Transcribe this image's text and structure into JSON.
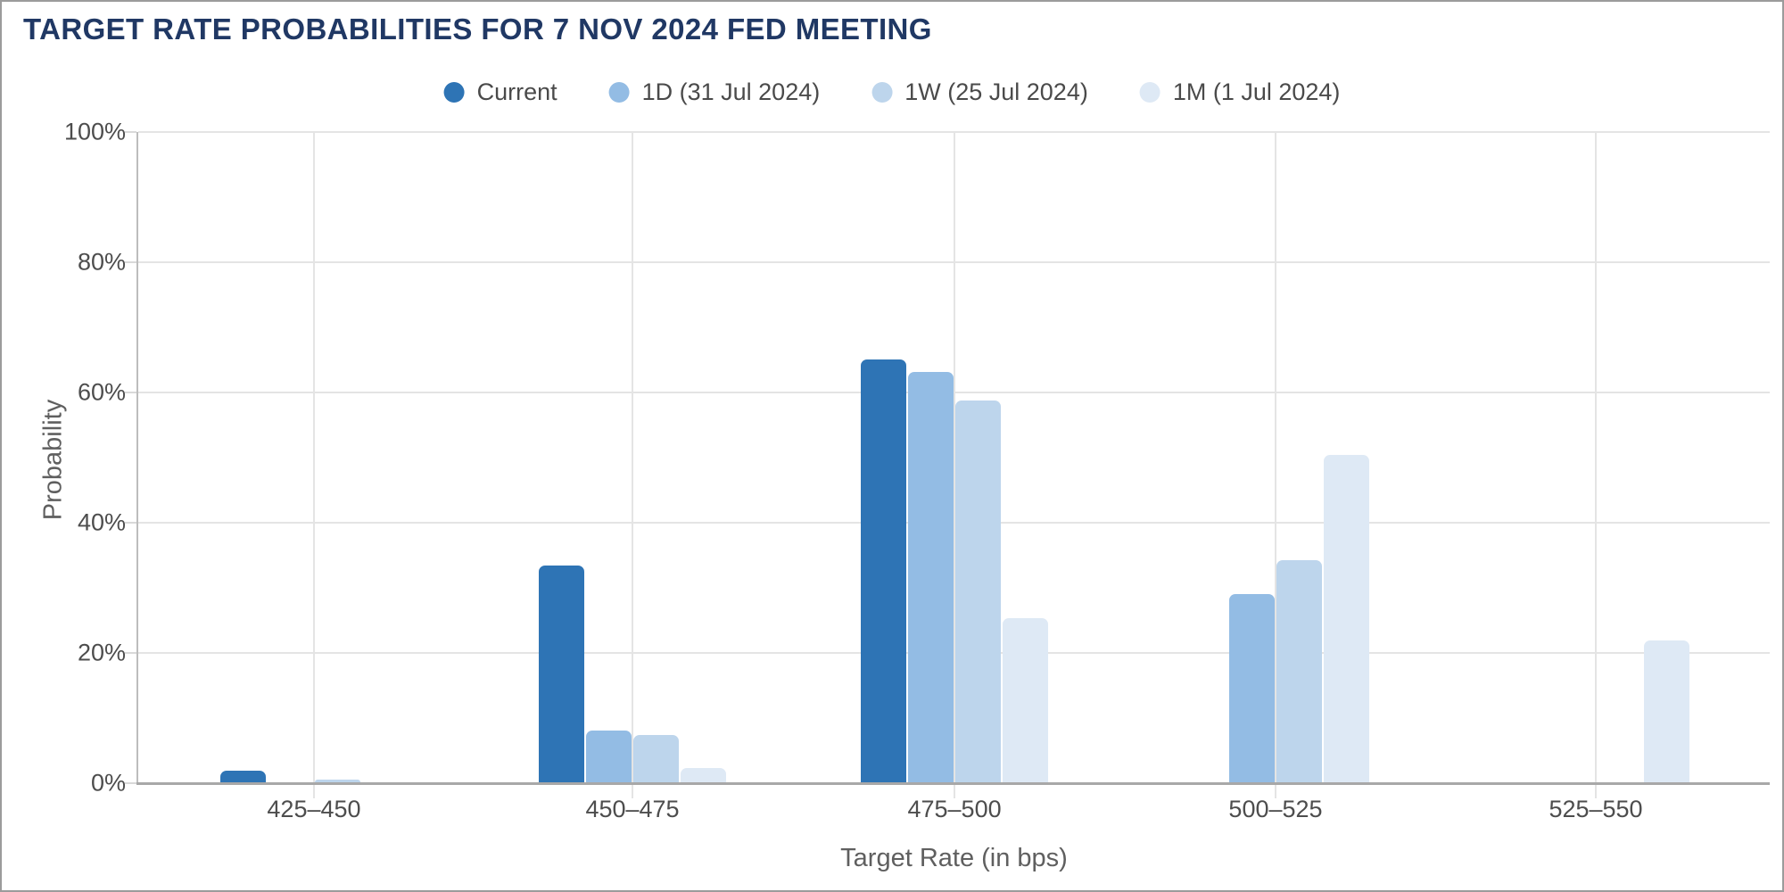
{
  "page": {
    "background": "#ffffff",
    "border_color": "#9b9b9b"
  },
  "chart_data": {
    "type": "bar",
    "title": "TARGET RATE PROBABILITIES FOR 7 NOV 2024 FED MEETING",
    "title_color": "#203864",
    "xlabel": "Target Rate (in bps)",
    "ylabel": "Probability",
    "ylim": [
      0,
      100
    ],
    "grid": true,
    "legend_position": "top",
    "categories": [
      "425–450",
      "450–475",
      "475–500",
      "500–525",
      "525–550"
    ],
    "y_ticks": [
      {
        "value": 0,
        "label": "0%"
      },
      {
        "value": 20,
        "label": "20%"
      },
      {
        "value": 40,
        "label": "40%"
      },
      {
        "value": 60,
        "label": "60%"
      },
      {
        "value": 80,
        "label": "80%"
      },
      {
        "value": 100,
        "label": "100%"
      }
    ],
    "series": [
      {
        "name": "Current",
        "color": "#2E74B5",
        "values": [
          1.8,
          33.3,
          64.9,
          0,
          0
        ]
      },
      {
        "name": "1D (31 Jul 2024)",
        "color": "#93BCE4",
        "values": [
          0,
          8.0,
          63.0,
          28.9,
          0
        ]
      },
      {
        "name": "1W (25 Jul 2024)",
        "color": "#BDD5EC",
        "values": [
          0.4,
          7.2,
          58.6,
          34.1,
          0
        ]
      },
      {
        "name": "1M (1 Jul 2024)",
        "color": "#DEE9F5",
        "values": [
          0,
          2.2,
          25.2,
          50.3,
          21.8
        ]
      }
    ]
  }
}
